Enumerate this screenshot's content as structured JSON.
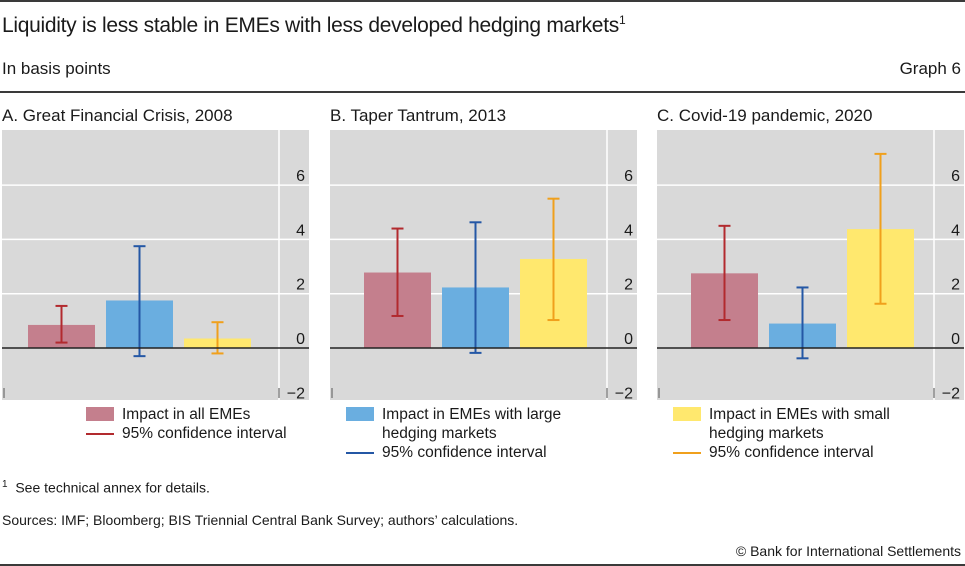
{
  "header": {
    "title": "Liquidity is less stable in EMEs with less developed hedging markets",
    "title_footnote_mark": "1",
    "subtitle": "In basis points",
    "graph_number": "Graph 6"
  },
  "colors": {
    "all_bar": "#c47f8d",
    "all_ci": "#b22a2e",
    "large_bar": "#6aaee0",
    "large_ci": "#2457a5",
    "small_bar": "#ffe86e",
    "small_ci": "#f0a01c",
    "plot_bg": "#d9d9d9"
  },
  "chart_data": [
    {
      "type": "bar",
      "title": "A. Great Financial Crisis, 2008",
      "ylim": [
        -2,
        7.5
      ],
      "yticks": [
        "6",
        "4",
        "2",
        "0",
        "−2"
      ],
      "ytick_values": [
        6,
        4,
        2,
        0,
        -2
      ],
      "grid": true,
      "series": [
        {
          "name": "Impact in all EMEs",
          "value": 0.85,
          "ci": [
            0.2,
            1.55
          ]
        },
        {
          "name": "Impact in EMEs with large hedging markets",
          "value": 1.75,
          "ci": [
            -0.3,
            3.75
          ]
        },
        {
          "name": "Impact in EMEs with small hedging markets",
          "value": 0.35,
          "ci": [
            -0.2,
            0.95
          ]
        }
      ]
    },
    {
      "type": "bar",
      "title": "B. Taper Tantrum, 2013",
      "ylim": [
        -2,
        7.5
      ],
      "yticks": [
        "6",
        "4",
        "2",
        "0",
        "−2"
      ],
      "ytick_values": [
        6,
        4,
        2,
        0,
        -2
      ],
      "grid": true,
      "series": [
        {
          "name": "Impact in all EMEs",
          "value": 2.78,
          "ci": [
            1.18,
            4.4
          ]
        },
        {
          "name": "Impact in EMEs with large hedging markets",
          "value": 2.23,
          "ci": [
            -0.18,
            4.63
          ]
        },
        {
          "name": "Impact in EMEs with small hedging markets",
          "value": 3.28,
          "ci": [
            1.03,
            5.5
          ]
        }
      ]
    },
    {
      "type": "bar",
      "title": "C. Covid-19 pandemic, 2020",
      "ylim": [
        -2,
        7.5
      ],
      "yticks": [
        "6",
        "4",
        "2",
        "0",
        "−2"
      ],
      "ytick_values": [
        6,
        4,
        2,
        0,
        -2
      ],
      "grid": true,
      "series": [
        {
          "name": "Impact in all EMEs",
          "value": 2.75,
          "ci": [
            1.03,
            4.5
          ]
        },
        {
          "name": "Impact in EMEs with large hedging markets",
          "value": 0.9,
          "ci": [
            -0.38,
            2.23
          ]
        },
        {
          "name": "Impact in EMEs with small hedging markets",
          "value": 4.38,
          "ci": [
            1.63,
            7.15
          ]
        }
      ]
    }
  ],
  "legends": [
    {
      "bar_label": "Impact in all EMEs",
      "ci_label": "95% confidence interval"
    },
    {
      "bar_label": "Impact in EMEs with large hedging markets",
      "ci_label": "95% confidence interval"
    },
    {
      "bar_label": "Impact in EMEs with small hedging markets",
      "ci_label": "95% confidence interval"
    }
  ],
  "footer": {
    "footnote_mark": "1",
    "footnote": "See technical annex for details.",
    "sources": "Sources: IMF; Bloomberg; BIS Triennial Central Bank Survey; authors’ calculations.",
    "copyright": "© Bank for International Settlements"
  }
}
